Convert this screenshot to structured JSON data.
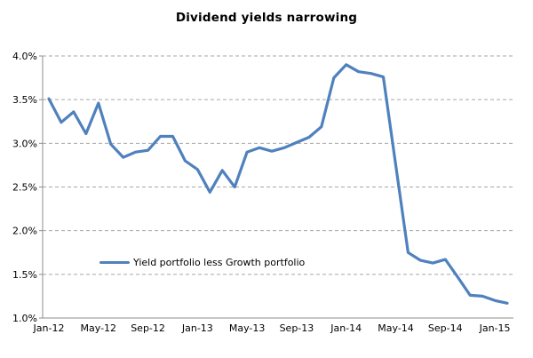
{
  "title": "Dividend yields narrowing",
  "legend": {
    "label": "Yield portfolio less Growth portfolio"
  },
  "colors": {
    "line": "#4F81BD",
    "grid": "#A6A6A6",
    "axis": "#8E8E8E",
    "text": "#000000",
    "background": "#FFFFFF"
  },
  "chart_data": {
    "type": "line",
    "title": "Dividend yields narrowing",
    "x": [
      "Jan-12",
      "Feb-12",
      "Mar-12",
      "Apr-12",
      "May-12",
      "Jun-12",
      "Jul-12",
      "Aug-12",
      "Sep-12",
      "Oct-12",
      "Nov-12",
      "Dec-12",
      "Jan-13",
      "Feb-13",
      "Mar-13",
      "Apr-13",
      "May-13",
      "Jun-13",
      "Jul-13",
      "Aug-13",
      "Sep-13",
      "Oct-13",
      "Nov-13",
      "Dec-13",
      "Jan-14",
      "Feb-14",
      "Mar-14",
      "Apr-14",
      "May-14",
      "Jun-14",
      "Jul-14",
      "Aug-14",
      "Sep-14",
      "Oct-14",
      "Nov-14",
      "Dec-14",
      "Jan-15",
      "Feb-15"
    ],
    "series": [
      {
        "name": "Yield portfolio less Growth portfolio",
        "values": [
          3.51,
          3.24,
          3.36,
          3.11,
          3.46,
          2.99,
          2.84,
          2.9,
          2.92,
          3.08,
          3.08,
          2.8,
          2.7,
          2.44,
          2.69,
          2.5,
          2.9,
          2.95,
          2.91,
          2.95,
          3.01,
          3.07,
          3.19,
          3.75,
          3.9,
          3.82,
          3.8,
          3.76,
          2.75,
          1.75,
          1.66,
          1.63,
          1.67,
          1.47,
          1.26,
          1.25,
          1.2,
          1.17
        ]
      }
    ],
    "xlabel": "",
    "ylabel": "",
    "ylim": [
      1.0,
      4.0
    ],
    "ytick_step": 0.5,
    "ytick_labels": [
      "1.0%",
      "1.5%",
      "2.0%",
      "2.5%",
      "3.0%",
      "3.5%",
      "4.0%"
    ],
    "xtick_labels": [
      "Jan-12",
      "May-12",
      "Sep-12",
      "Jan-13",
      "May-13",
      "Sep-13",
      "Jan-14",
      "May-14",
      "Sep-14",
      "Jan-15"
    ],
    "xtick_every": 4,
    "grid": true,
    "grid_style": "dashed",
    "legend_position": "inside-lower-left"
  }
}
